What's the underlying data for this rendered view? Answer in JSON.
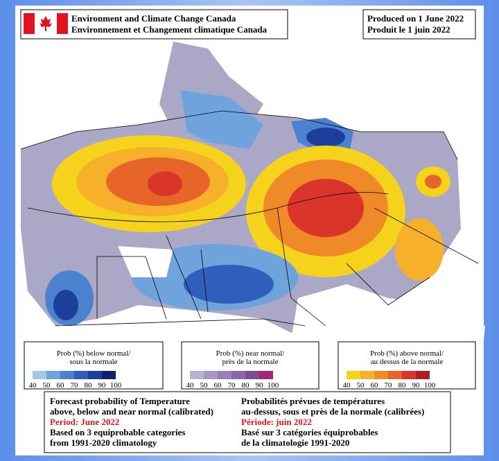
{
  "header": {
    "agency_en": "Environment and Climate Change Canada",
    "agency_fr": "Environnement et Changement climatique Canada",
    "produced_en": "Produced on 1 June 2022",
    "produced_fr": "Produit le 1 juin 2022"
  },
  "legends": [
    {
      "title_en": "Prob (%) below normal/",
      "title_fr": "sous la normale",
      "colors": [
        "#9ec8ea",
        "#6fa3dc",
        "#4b82cf",
        "#2f5fbd",
        "#1c3f9c",
        "#10226e"
      ],
      "ticks": [
        40,
        50,
        60,
        70,
        80,
        90,
        100
      ]
    },
    {
      "title_en": "Prob (%) near normal/",
      "title_fr": "près de la normale",
      "colors": [
        "#b8b3cf",
        "#a897c2",
        "#9a7fb6",
        "#8c66a6",
        "#7c4b94",
        "#a0287a"
      ],
      "ticks": [
        40,
        50,
        60,
        70,
        80,
        90,
        100
      ]
    },
    {
      "title_en": "Prob (%) above normal/",
      "title_fr": "au dessus de la normale",
      "colors": [
        "#f5d21c",
        "#f7b02a",
        "#f08a28",
        "#e8652a",
        "#d9352a",
        "#b01c22"
      ],
      "ticks": [
        40,
        50,
        60,
        70,
        80,
        90,
        100
      ]
    }
  ],
  "footer": {
    "left": [
      "Forecast probability of Temperature",
      "above, below and near normal (calibrated)",
      "Period: June 2022",
      "Based on 3 equiprobable categories",
      " from 1991-2020 climatology"
    ],
    "right": [
      "Probabilités prévues de températures",
      "au-dessus, sous et près de la normale (calibrées)",
      "Période: juin 2022",
      "Basé sur 3 catégories équiprobables",
      "de la climatologie 1991-2020"
    ]
  }
}
